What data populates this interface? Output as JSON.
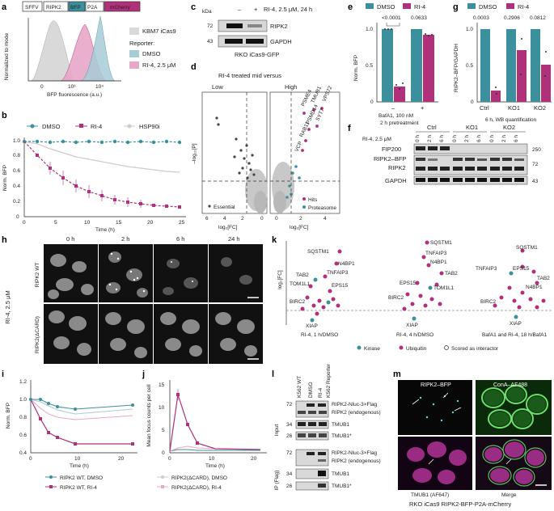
{
  "panel_letters": [
    "a",
    "b",
    "c",
    "d",
    "e",
    "f",
    "g",
    "h",
    "i",
    "j",
    "k",
    "l",
    "m"
  ],
  "colors": {
    "teal": "#3c8f9c",
    "magenta": "#b0307a",
    "lightgray": "#c8c8c8",
    "pink": "#e8a7c8",
    "lightblue": "#a8ccd6"
  },
  "a": {
    "construct": [
      "SFFV",
      "RIPK2",
      "BFP",
      "P2A",
      "mCherry"
    ],
    "legend_title": "Reporter:",
    "legend": [
      "KBM7 iCas9",
      "DMSO",
      "RI-4, 2.5 μM"
    ],
    "xlabel": "BFP fluorescence (a.u.)",
    "ylabel": "Normalized to mode",
    "xticks": [
      "0",
      "10³",
      "10⁴"
    ]
  },
  "b": {
    "legend": [
      "DMSO",
      "RI-4",
      "HSP90i"
    ],
    "xlabel": "Time (h)",
    "ylabel": "Norm. BFP",
    "xticks": [
      "0",
      "5",
      "10",
      "15",
      "20",
      "25"
    ],
    "yticks": [
      "0",
      "0.2",
      "0.4",
      "0.6",
      "0.8",
      "1.0"
    ]
  },
  "c": {
    "kda": "kDa",
    "treatment": "RI-4, 2.5 μM, 24 h",
    "signs": [
      "–",
      "+"
    ],
    "markers": [
      "72",
      "43"
    ],
    "bands": [
      "RIPK2",
      "GAPDH"
    ],
    "cell_line": "RKO iCas9-GFP"
  },
  "d": {
    "title": "RI-4 treated mid versus",
    "sides": [
      "Low",
      "High"
    ],
    "ylabel": "–log₁₀[P]",
    "xlabel": "log₂[FC]",
    "xticks_left": [
      "6",
      "4",
      "2",
      "0"
    ],
    "xticks_right": [
      "0",
      "2",
      "4"
    ],
    "yticks": [
      "0",
      "2",
      "4",
      "6",
      "8",
      "10"
    ],
    "hits": [
      "PSME4",
      "TMUB1",
      "VPS72",
      "PSMD14",
      "SYT7",
      "RAB11",
      "VCP"
    ],
    "essential_label": "Essential",
    "legend": [
      "Hits",
      "Proteasome"
    ]
  },
  "e": {
    "legend": [
      "DMSO",
      "RI-4"
    ],
    "pvals": [
      "<0.0001",
      "0.0633"
    ],
    "ylabel": "Norm. BFP",
    "yticks": [
      "0",
      "0.5",
      "1.0"
    ],
    "xcats": [
      "–",
      "+"
    ],
    "footer": [
      "BafA1, 100 nM",
      "2 h pretreatment"
    ]
  },
  "f": {
    "treatment": "RI-4, 2.5 μM",
    "groups": [
      "Ctrl",
      "KO1",
      "KO2"
    ],
    "times": [
      "0 h",
      "2 h",
      "6 h"
    ],
    "bands": [
      "FIP200",
      "RIPK2–BFP",
      "RIPK2",
      "GAPDH"
    ],
    "markers": [
      "250",
      "72",
      "43"
    ]
  },
  "g": {
    "legend": [
      "DMSO",
      "RI-4"
    ],
    "pvals": [
      "0.0003",
      "0.2906",
      "0.0812"
    ],
    "ylabel": "RIPK2–BFP/GAPDH",
    "yticks": [
      "0",
      "0.5",
      "1.0"
    ],
    "xcats": [
      "Ctrl",
      "KO1",
      "KO2"
    ],
    "footer": "6 h, WB quantification"
  },
  "h": {
    "times": [
      "0 h",
      "2 h",
      "6 h",
      "24 h"
    ],
    "rows": [
      "RIPK2 WT",
      "RIPK2(ΔCARD)"
    ],
    "treatment": "RI-4, 2.5 μM"
  },
  "k": {
    "ylabel": "log₂[FC]",
    "groups": [
      "RI-4, 1 h/DMSO",
      "RI-4, 4 h/DMSO",
      "BafA1 and RI-4, 18 h/BafA1"
    ],
    "labels1": [
      "SQSTM1",
      "N4BP1",
      "TAB2",
      "TNFAIP3",
      "TOM1L1",
      "EPS15",
      "BIRC2",
      "XIAP"
    ],
    "labels2": [
      "SQSTM1",
      "TNFAIP3",
      "N4BP1",
      "TAB2",
      "EPS15",
      "TOM1L1",
      "BIRC2",
      "XIAP"
    ],
    "labels3": [
      "SQSTM1",
      "TNFAIP3",
      "EPS15",
      "TAB2",
      "N4BP1",
      "BIRC2",
      "XIAP"
    ],
    "legend": [
      "Kinase",
      "Ubiquitin",
      "Scored as interactor"
    ]
  },
  "i": {
    "ylabel": "Norm. BFP",
    "xlabel": "Time (h)",
    "xticks": [
      "0",
      "10",
      "20"
    ],
    "yticks": [
      "0.4",
      "0.6",
      "0.8",
      "1.0",
      "1.2"
    ]
  },
  "j": {
    "ylabel": "Mean focus counts per cell",
    "xlabel": "Time (h)",
    "xticks": [
      "0",
      "10",
      "20"
    ],
    "yticks": [
      "0",
      "5",
      "10",
      "15"
    ]
  },
  "ij_legend": [
    "RIPK2 WT, DMSO",
    "RIPK2 WT, RI-4",
    "RIPK2(ΔCARD), DMSO",
    "RIPK2(ΔCARD), RI-4"
  ],
  "l": {
    "lanes": [
      "K562 WT",
      "DMSO",
      "RI-4"
    ],
    "reporter": "K562 Reporter",
    "input": "Input",
    "ip": "IP (Flag)",
    "markers_input": [
      "72",
      "34",
      "26"
    ],
    "markers_ip": [
      "72",
      "34",
      "26"
    ],
    "bands_input": [
      "RIPK2-Nluc-3×Flag",
      "RIPK2 (endogenous)",
      "TMUB1",
      "TMUB1*"
    ],
    "bands_ip": [
      "RIPK2-Nluc-3×Flag",
      "RIPK2 (endogenous)",
      "TMUB1",
      "TMUB1*"
    ]
  },
  "m": {
    "channels": [
      "RIPK2–BFP",
      "ConA–AF488",
      "TMUB1 (AF647)",
      "Merge"
    ],
    "caption": "RKO iCas9 RIPK2-BFP-P2A-mCherry"
  }
}
